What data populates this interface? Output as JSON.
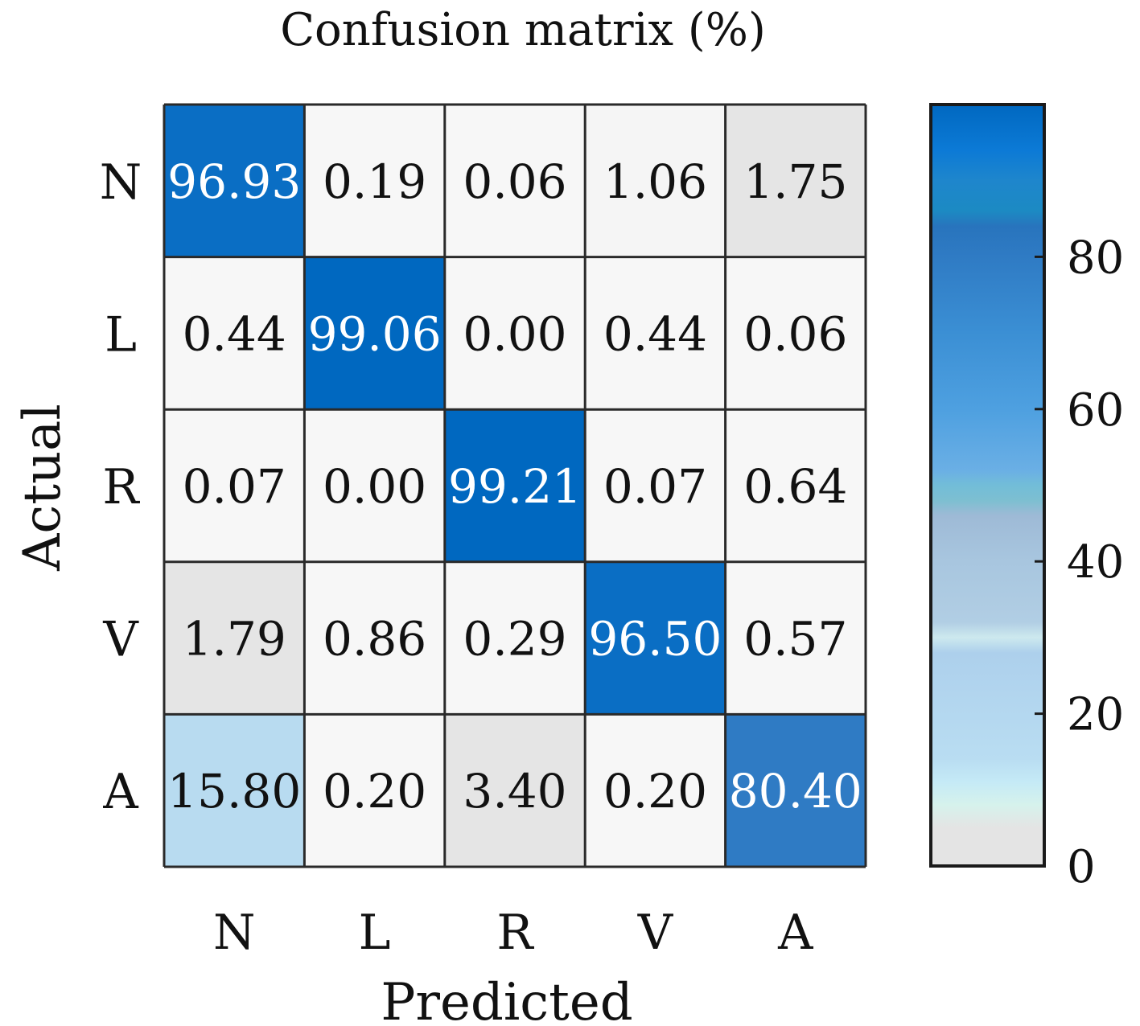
{
  "chart_data": {
    "type": "heatmap",
    "title": "Confusion matrix (%)",
    "xlabel": "Predicted",
    "ylabel": "Actual",
    "x_categories": [
      "N",
      "L",
      "R",
      "V",
      "A"
    ],
    "y_categories": [
      "N",
      "L",
      "R",
      "V",
      "A"
    ],
    "values": [
      [
        96.93,
        0.19,
        0.06,
        1.06,
        1.75
      ],
      [
        0.44,
        99.06,
        0.0,
        0.44,
        0.06
      ],
      [
        0.07,
        0.0,
        99.21,
        0.07,
        0.64
      ],
      [
        1.79,
        0.86,
        0.29,
        96.5,
        0.57
      ],
      [
        15.8,
        0.2,
        3.4,
        0.2,
        80.4
      ]
    ],
    "value_labels": [
      [
        "96.93",
        "0.19",
        "0.06",
        "1.06",
        "1.75"
      ],
      [
        "0.44",
        "99.06",
        "0.00",
        "0.44",
        "0.06"
      ],
      [
        "0.07",
        "0.00",
        "99.21",
        "0.07",
        "0.64"
      ],
      [
        "1.79",
        "0.86",
        "0.29",
        "96.50",
        "0.57"
      ],
      [
        "15.80",
        "0.20",
        "3.40",
        "0.20",
        "80.40"
      ]
    ],
    "colorbar": {
      "range": [
        0,
        100
      ],
      "ticks": [
        0,
        20,
        40,
        60,
        80
      ],
      "tick_labels": [
        "0",
        "20",
        "40",
        "60",
        "80"
      ]
    },
    "colormap": [
      [
        0,
        "#e4e4e4"
      ],
      [
        5,
        "#e4e4e4"
      ],
      [
        8,
        "#d6f2ec"
      ],
      [
        11,
        "#c5eaf6"
      ],
      [
        14,
        "#b9ddf2"
      ],
      [
        28,
        "#add0ec"
      ],
      [
        30,
        "#cde9ee"
      ],
      [
        32,
        "#b1cee4"
      ],
      [
        40,
        "#a8c6df"
      ],
      [
        46,
        "#9ebad6"
      ],
      [
        48,
        "#7dbfd1"
      ],
      [
        50,
        "#72bdd8"
      ],
      [
        52,
        "#6aafe5"
      ],
      [
        60,
        "#4ea0e0"
      ],
      [
        70,
        "#3b8fd4"
      ],
      [
        80,
        "#2f7bc4"
      ],
      [
        84,
        "#2874bd"
      ],
      [
        86,
        "#1c8ac3"
      ],
      [
        90,
        "#1e86cc"
      ],
      [
        94,
        "#0c7ad6"
      ],
      [
        100,
        "#0068c0"
      ]
    ],
    "cell_colors": [
      [
        "#0a6ec4",
        "#f7f7f7",
        "#f7f7f7",
        "#f5f5f5",
        "#e5e5e5"
      ],
      [
        "#f7f7f7",
        "#0068c0",
        "#f7f7f7",
        "#f7f7f7",
        "#f7f7f7"
      ],
      [
        "#f7f7f7",
        "#f7f7f7",
        "#0068c0",
        "#f7f7f7",
        "#f7f7f7"
      ],
      [
        "#e5e5e5",
        "#f7f7f7",
        "#f7f7f7",
        "#0a6ec4",
        "#f7f7f7"
      ],
      [
        "#b8dbf0",
        "#f7f7f7",
        "#e5e5e5",
        "#f7f7f7",
        "#2f7bc4"
      ]
    ],
    "light_text_threshold": 50,
    "dark_text_color": "#111111",
    "light_text_color": "#ffffff",
    "grid": false
  }
}
